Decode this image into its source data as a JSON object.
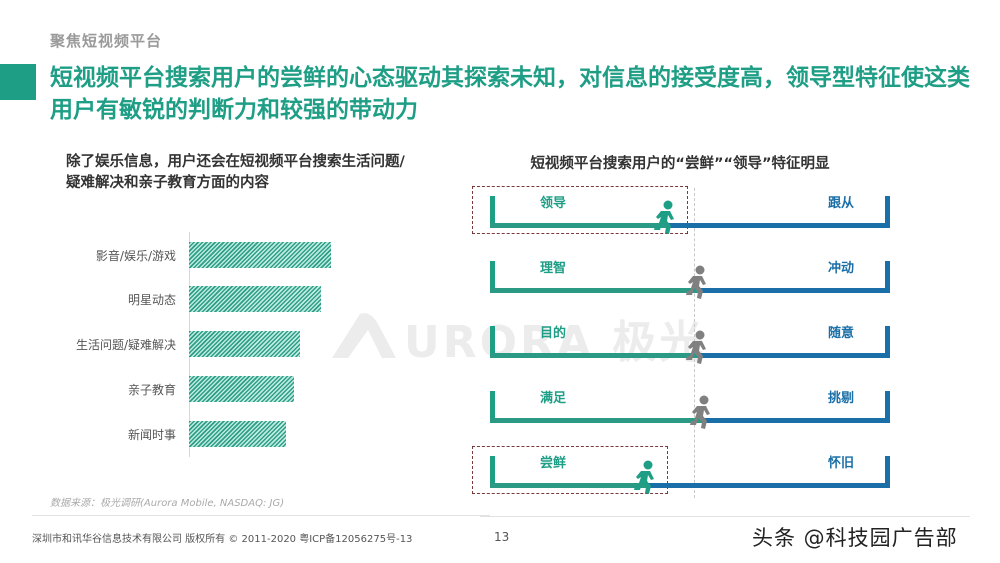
{
  "header": {
    "section_label": "聚焦短视频平台",
    "headline": "短视频平台搜索用户的尝鲜的心态驱动其探索未知，对信息的接受度高，领导型特征使这类用户有敏锐的判断力和较强的带动力"
  },
  "left_panel": {
    "title": "除了娱乐信息，用户还会在短视频平台搜索生活问题/疑难解决和亲子教育方面的内容",
    "source": "数据来源：极光调研(Aurora Mobile, NASDAQ: JG)"
  },
  "right_panel": {
    "title": "短视频平台搜索用户的“尝鲜”“领导”特征明显",
    "scales": [
      {
        "left": "领导",
        "right": "跟从",
        "position": 0.44,
        "highlight": true,
        "runner_color": "#1f9e86"
      },
      {
        "left": "理智",
        "right": "冲动",
        "position": 0.52,
        "highlight": false,
        "runner_color": "#808080"
      },
      {
        "left": "目的",
        "right": "随意",
        "position": 0.52,
        "highlight": false,
        "runner_color": "#808080"
      },
      {
        "left": "满足",
        "right": "挑剔",
        "position": 0.53,
        "highlight": false,
        "runner_color": "#808080"
      },
      {
        "left": "尝鲜",
        "right": "怀旧",
        "position": 0.39,
        "highlight": true,
        "runner_color": "#1f9e86"
      }
    ]
  },
  "chart_data": {
    "type": "bar",
    "orientation": "horizontal",
    "title": "除了娱乐信息，用户还会在短视频平台搜索生活问题/疑难解决和亲子教育方面的内容",
    "categories": [
      "影音/娱乐/游戏",
      "明星动态",
      "生活问题/疑难解决",
      "亲子教育",
      "新闻时事"
    ],
    "values": [
      142,
      132,
      111,
      105,
      97
    ],
    "value_note": "Relative bar lengths (px); no numeric axis or data labels shown",
    "xlabel": "",
    "ylabel": "",
    "grid": false,
    "legend": null,
    "colors": {
      "bar": "#2f9e88",
      "bar_light": "#bfece1"
    }
  },
  "watermarks": {
    "brand": "URORA 极光",
    "toutiao": "头条 @科技园广告部"
  },
  "footer": {
    "copyright": "深圳市和讯华谷信息技术有限公司 版权所有 © 2011-2020 粤ICP备12056275号-13",
    "page_number": "13"
  },
  "colors": {
    "accent": "#1f9e86",
    "blue": "#1a6fa8",
    "gray_runner": "#808080"
  }
}
